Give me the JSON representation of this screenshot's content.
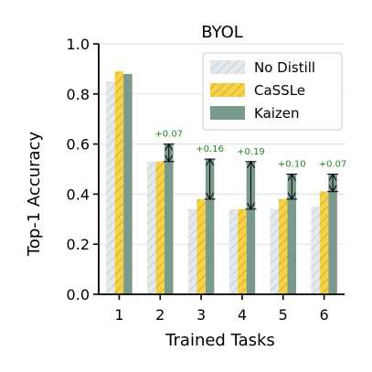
{
  "chart_data": {
    "type": "bar",
    "title": "BYOL",
    "xlabel": "Trained Tasks",
    "ylabel": "Top-1 Accuracy",
    "categories": [
      "1",
      "2",
      "3",
      "4",
      "5",
      "6"
    ],
    "ylim": [
      0.0,
      1.0
    ],
    "yticks": [
      "0.0",
      "0.2",
      "0.4",
      "0.6",
      "0.8",
      "1.0"
    ],
    "grid": true,
    "legend_position": "top-right",
    "series": [
      {
        "name": "No Distill",
        "values": [
          0.85,
          0.53,
          0.34,
          0.34,
          0.34,
          0.35
        ],
        "color": "#dfe6ea",
        "hatch": "diagonal"
      },
      {
        "name": "CaSSLe",
        "values": [
          0.89,
          0.53,
          0.38,
          0.34,
          0.38,
          0.41
        ],
        "color": "#f4d14c",
        "hatch": "diagonal"
      },
      {
        "name": "Kaizen",
        "values": [
          0.88,
          0.6,
          0.54,
          0.53,
          0.48,
          0.48
        ],
        "color": "#7a9a8c",
        "hatch": "none"
      }
    ],
    "annotations": [
      {
        "task": "2",
        "text": "+0.07",
        "from": 0.53,
        "to": 0.6,
        "color": "#1f8a1f"
      },
      {
        "task": "3",
        "text": "+0.16",
        "from": 0.38,
        "to": 0.54,
        "color": "#1f8a1f"
      },
      {
        "task": "4",
        "text": "+0.19",
        "from": 0.34,
        "to": 0.53,
        "color": "#1f8a1f"
      },
      {
        "task": "5",
        "text": "+0.10",
        "from": 0.38,
        "to": 0.48,
        "color": "#1f8a1f"
      },
      {
        "task": "6",
        "text": "+0.07",
        "from": 0.41,
        "to": 0.48,
        "color": "#1f8a1f"
      }
    ]
  }
}
